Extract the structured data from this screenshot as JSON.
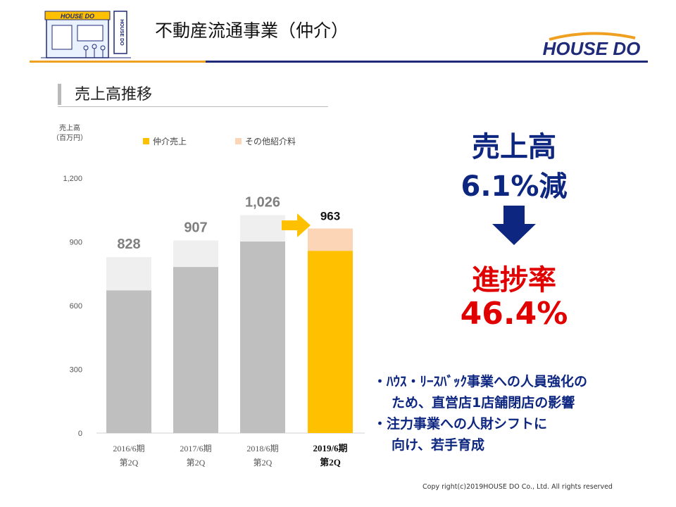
{
  "header": {
    "title": "不動産流通事業（仲介）",
    "logo_text": "HOUSE DO",
    "sign_text": "HOUSE DO"
  },
  "section": {
    "title": "売上高推移"
  },
  "colors": {
    "brand_navy": "#1f2a78",
    "brand_orange": "#f0a020",
    "highlight_blue": "#0d2680",
    "highlight_red": "#e00000",
    "bar_grey": "#bfbfbf",
    "bar_light": "#efefef",
    "bar_gold": "#ffc000",
    "bar_peach": "#fbd5b5"
  },
  "chart_data": {
    "type": "bar",
    "stacked": true,
    "y_unit_line1": "売上高",
    "y_unit_line2": "（百万円）",
    "categories": [
      {
        "line1": "2016/6期",
        "line2": "第2Q",
        "bold": false
      },
      {
        "line1": "2017/6期",
        "line2": "第2Q",
        "bold": false
      },
      {
        "line1": "2018/6期",
        "line2": "第2Q",
        "bold": false
      },
      {
        "line1": "2019/6期",
        "line2": "第2Q",
        "bold": true
      }
    ],
    "series": [
      {
        "name": "仲介売上",
        "values": [
          672,
          782,
          902,
          858
        ]
      },
      {
        "name": "その他紹介料",
        "values": [
          156,
          125,
          124,
          105
        ]
      }
    ],
    "totals": [
      "828",
      "907",
      "1,026",
      "963"
    ],
    "y_ticks": [
      "0",
      "300",
      "600",
      "900",
      "1,200"
    ],
    "ylim": [
      0,
      1200
    ],
    "legend_position": "top"
  },
  "headline": {
    "line1": "売上高",
    "line2": "6.1%減",
    "line3": "進捗率",
    "line4": "46.4%"
  },
  "bullets": [
    {
      "line1": "・ﾊｳｽ・ﾘｰｽﾊﾞｯｸ事業への人員強化の",
      "line2": "ため、直営店1店舗閉店の影響"
    },
    {
      "line1": "・注力事業への人財シフトに",
      "line2": "向け、若手育成"
    }
  ],
  "footer": "Copy right(c)2019HOUSE DO Co., Ltd. All rights reserved"
}
